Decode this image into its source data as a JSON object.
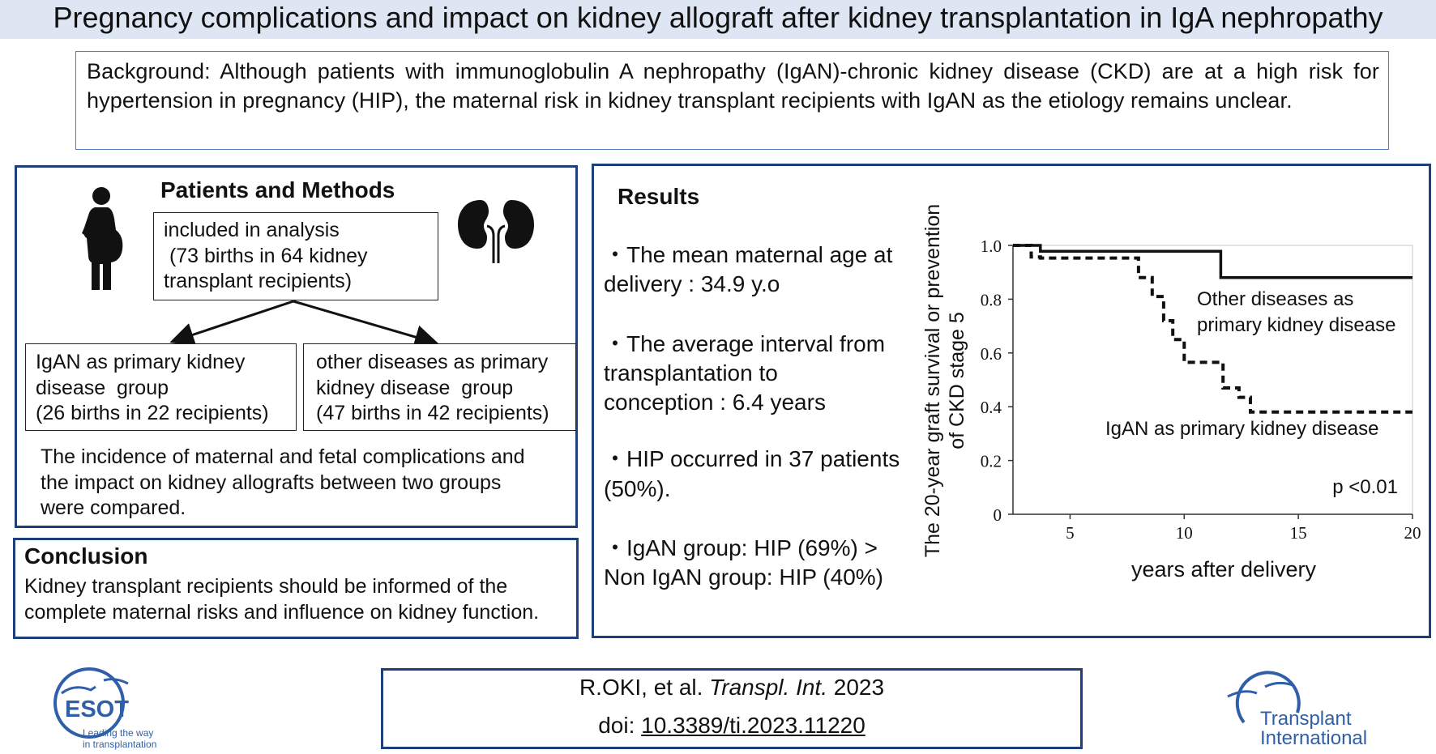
{
  "title": "Pregnancy complications and impact on kidney allograft after kidney transplantation in IgA nephropathy",
  "background": {
    "text": "Background: Although patients with immunoglobulin A nephropathy (IgAN)-chronic kidney disease (CKD) are at a high risk for hypertension in pregnancy (HIP), the maternal risk in kidney transplant recipients with IgAN as the etiology remains unclear."
  },
  "methods": {
    "heading": "Patients and Methods",
    "included_line1": "included in analysis",
    "included_line2": " (73 births in 64 kidney",
    "included_line3": "transplant recipients)",
    "group_igan_line1": "IgAN as primary kidney",
    "group_igan_line2": "disease  group",
    "group_igan_line3": "(26 births in 22 recipients)",
    "group_other_line1": "other diseases as primary",
    "group_other_line2": "kidney disease  group",
    "group_other_line3": "(47 births in 42 recipients)",
    "note_line1": "The incidence of maternal and fetal complications and",
    "note_line2": "the impact on kidney allografts between two groups",
    "note_line3": "were compared.",
    "icons": [
      "pregnant-woman-icon",
      "kidneys-icon"
    ]
  },
  "conclusion": {
    "heading": "Conclusion",
    "line1": "Kidney transplant recipients should be informed of the",
    "line2": "complete maternal risks and influence on kidney function."
  },
  "results": {
    "heading": "Results",
    "item1_line1": "・The mean maternal age at",
    "item1_line2": "delivery : 34.9 y.o",
    "item2_line1": "・The average interval from",
    "item2_line2": "transplantation to",
    "item2_line3": "conception : 6.4 years",
    "item3_line1": "・HIP occurred in 37 patients",
    "item3_line2": "(50%).",
    "item4_line1": "・IgAN group: HIP (69%) >",
    "item4_line2": "Non IgAN group: HIP (40%)"
  },
  "chart_data": {
    "type": "line",
    "title": "",
    "ylabel_line1": "The 20-year graft survival or prevention",
    "ylabel_line2": "of CKD stage 5",
    "xlabel": "years after delivery",
    "xlim": [
      2.5,
      20
    ],
    "ylim": [
      0,
      1.0
    ],
    "x_ticks": [
      "5",
      "10",
      "15",
      "20"
    ],
    "y_ticks": [
      "0",
      "0.2",
      "0.4",
      "0.6",
      "0.8",
      "1.0"
    ],
    "annotation": "p <0.01",
    "series": [
      {
        "name": "Other diseases as primary kidney disease",
        "label_line1": "Other diseases as",
        "label_line2": "primary kidney disease",
        "style": "solid",
        "x": [
          2.5,
          3.7,
          3.7,
          11.6,
          11.6,
          20
        ],
        "y": [
          1.0,
          1.0,
          0.978,
          0.978,
          0.88,
          0.88
        ]
      },
      {
        "name": "IgAN as primary kidney disease",
        "label_line1": "IgAN as primary kidney disease",
        "style": "dashed",
        "x": [
          2.5,
          3.3,
          3.3,
          3.7,
          3.7,
          8.0,
          8.0,
          8.6,
          8.6,
          9.1,
          9.1,
          9.5,
          9.5,
          10.0,
          10.0,
          11.7,
          11.7,
          12.4,
          12.4,
          12.9,
          12.9,
          20
        ],
        "y": [
          1.0,
          1.0,
          0.957,
          0.957,
          0.953,
          0.953,
          0.88,
          0.88,
          0.81,
          0.81,
          0.72,
          0.72,
          0.65,
          0.65,
          0.565,
          0.565,
          0.47,
          0.47,
          0.435,
          0.435,
          0.38,
          0.38
        ]
      }
    ]
  },
  "citation": {
    "authors": "R.OKI, et al. ",
    "journal": "Transpl. Int.",
    "year": " 2023",
    "doi_prefix": "doi: ",
    "doi": "10.3389/ti.2023.11220"
  },
  "logos": {
    "esot_name": "ESOT",
    "esot_tagline1": "Leading the way",
    "esot_tagline2": "in transplantation",
    "ti_line1": "Transplant",
    "ti_line2": "International",
    "brand_color": "#2f5fa8"
  }
}
